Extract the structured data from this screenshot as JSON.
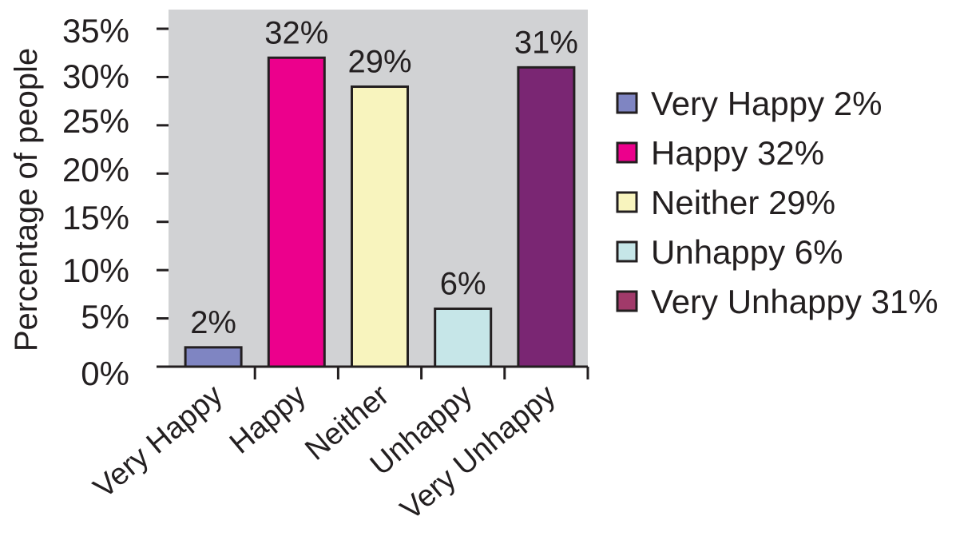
{
  "chart_data": {
    "type": "bar",
    "title": "",
    "xlabel": "",
    "ylabel": "Percentage of people",
    "categories": [
      "Very Happy",
      "Happy",
      "Neither",
      "Unhappy",
      "Very Unhappy"
    ],
    "values": [
      2,
      32,
      29,
      6,
      31
    ],
    "data_labels": [
      "2%",
      "32%",
      "29%",
      "6%",
      "31%"
    ],
    "value_unit": "%",
    "colors": [
      "#7f85c2",
      "#ec008c",
      "#f8f4be",
      "#c6e6e8",
      "#7a2673"
    ],
    "legend_swatch_colors": [
      "#7f85c2",
      "#ec008c",
      "#f8f4be",
      "#c6e6e8",
      "#a13a6a"
    ],
    "ylim": [
      0,
      35
    ],
    "yticks": [
      0,
      5,
      10,
      15,
      20,
      25,
      30,
      35
    ],
    "ytick_labels": [
      "0%",
      "5%",
      "10%",
      "15%",
      "20%",
      "25%",
      "30%",
      "35%"
    ],
    "grid": false,
    "plot_background": "#d1d2d4",
    "legend": {
      "position": "right",
      "entries": [
        {
          "label": "Very Happy",
          "value": "2%"
        },
        {
          "label": "Happy",
          "value": "32%"
        },
        {
          "label": "Neither",
          "value": "29%"
        },
        {
          "label": "Unhappy",
          "value": "6%"
        },
        {
          "label": "Very Unhappy",
          "value": "31%"
        }
      ]
    }
  }
}
